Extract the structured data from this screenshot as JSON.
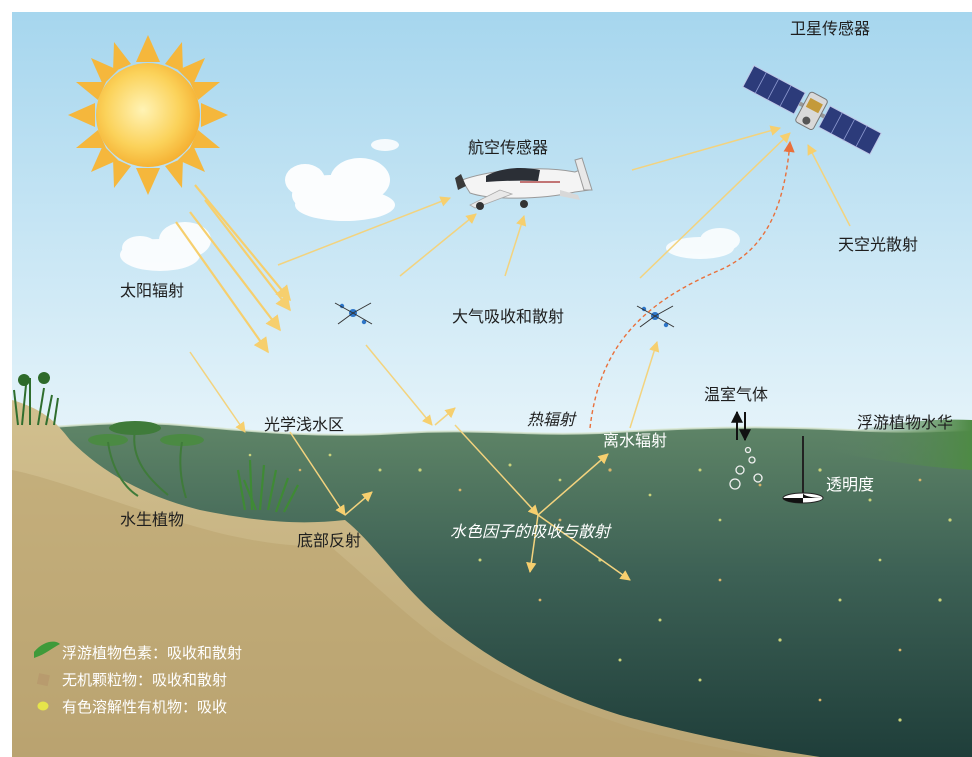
{
  "labels": {
    "satellite_sensor": "卫星传感器",
    "airborne_sensor": "航空传感器",
    "sky_light_scatter": "天空光散射",
    "solar_radiation": "太阳辐射",
    "atmos_absorb_scatter": "大气吸收和散射",
    "optical_shallow_water": "光学浅水区",
    "thermal_radiation": "热辐射",
    "water_leaving_radiation": "离水辐射",
    "greenhouse_gas": "温室气体",
    "phytoplankton_bloom": "浮游植物水华",
    "transparency": "透明度",
    "aquatic_plants": "水生植物",
    "bottom_reflection": "底部反射",
    "water_color_factors": "水色因子的吸收与散射"
  },
  "legend": [
    {
      "icon": "leaf-icon",
      "color": "#3f9a3a",
      "label": "浮游植物色素：吸收和散射"
    },
    {
      "icon": "particle-icon",
      "color": "#b89b6e",
      "label": "无机颗粒物：吸收和散射"
    },
    {
      "icon": "dot-icon",
      "color": "#e6e44a",
      "label": "有色溶解性有机物：吸收"
    }
  ],
  "colors": {
    "sky_top": "#a6d6ee",
    "sky_bottom": "#e6f4fa",
    "water_top": "#5f8567",
    "water_bottom": "#1f3e3a",
    "sand": "#c9b585",
    "ray": "#f6cf6e"
  }
}
